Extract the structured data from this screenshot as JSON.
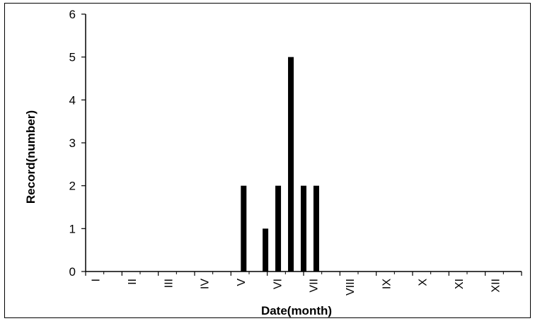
{
  "chart_data": {
    "type": "bar",
    "xlabel": "Date(month)",
    "ylabel": "Record(number)",
    "xlim": [
      0,
      12
    ],
    "ylim": [
      0,
      6
    ],
    "yticks": [
      0,
      1,
      2,
      3,
      4,
      5,
      6
    ],
    "month_labels": [
      "I",
      "II",
      "III",
      "IV",
      "V",
      "VI",
      "VII",
      "VIII",
      "IX",
      "X",
      "XI",
      "XII"
    ],
    "grid": false,
    "legend": "none",
    "bar_color": "#000000",
    "bars": [
      {
        "x": 4.35,
        "value": 2
      },
      {
        "x": 4.95,
        "value": 1
      },
      {
        "x": 5.3,
        "value": 2
      },
      {
        "x": 5.65,
        "value": 5
      },
      {
        "x": 6.0,
        "value": 2
      },
      {
        "x": 6.35,
        "value": 2
      }
    ]
  }
}
